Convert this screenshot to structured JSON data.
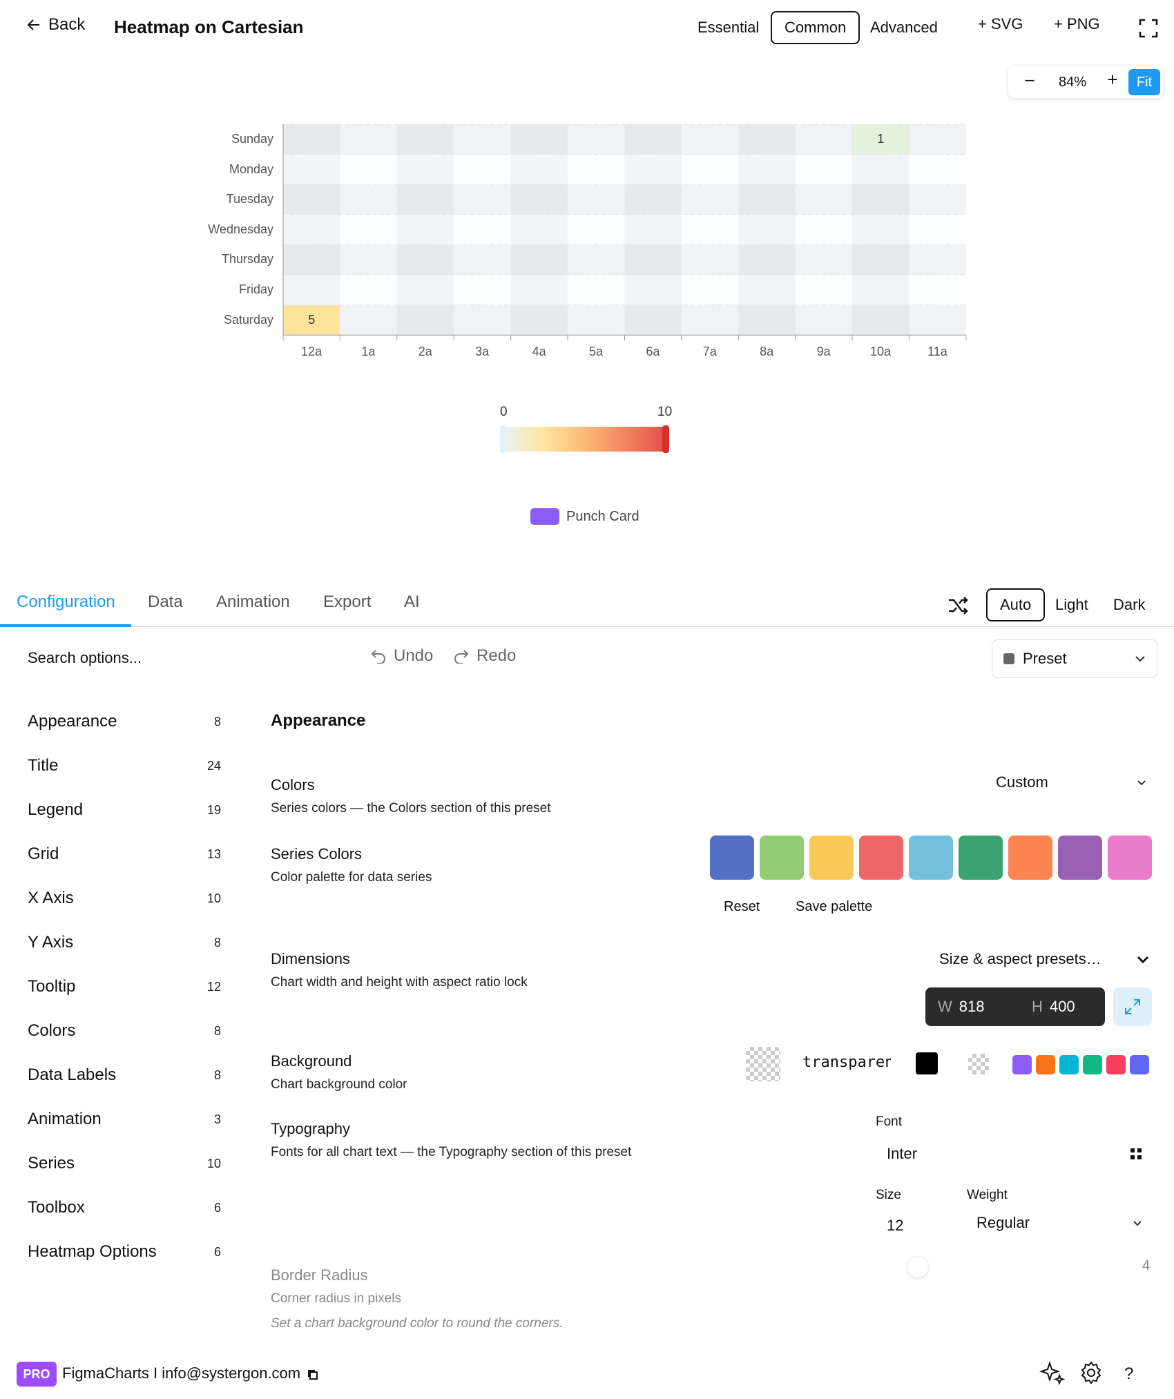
{
  "header": {
    "back_label": "Back",
    "title": "Heatmap on Cartesian",
    "modes": [
      "Essential",
      "Common",
      "Advanced"
    ],
    "active_mode": "Common",
    "export_svg": "+ SVG",
    "export_png": "+ PNG"
  },
  "zoom": {
    "out": "–",
    "level": "84%",
    "in": "+",
    "fit": "Fit"
  },
  "chart_data": {
    "type": "heatmap",
    "y_categories": [
      "Sunday",
      "Monday",
      "Tuesday",
      "Wednesday",
      "Thursday",
      "Friday",
      "Saturday"
    ],
    "x_categories": [
      "12a",
      "1a",
      "2a",
      "3a",
      "4a",
      "5a",
      "6a",
      "7a",
      "8a",
      "9a",
      "10a",
      "11a"
    ],
    "cells": [
      {
        "y": "Sunday",
        "x": "10a",
        "value": 1
      },
      {
        "y": "Saturday",
        "x": "12a",
        "value": 5
      }
    ],
    "visual_map": {
      "min": 0,
      "max": 10,
      "min_label": "0",
      "max_label": "10"
    },
    "legend": [
      "Punch Card"
    ],
    "colors": {
      "series": "#8b5cf6",
      "low": "#e0f3f8",
      "mid": "#fee090",
      "high": "#d73027"
    }
  },
  "panel": {
    "tabs": [
      "Configuration",
      "Data",
      "Animation",
      "Export",
      "AI"
    ],
    "active_tab": "Configuration",
    "themes": [
      "Auto",
      "Light",
      "Dark"
    ],
    "active_theme": "Auto",
    "search_placeholder": "Search options...",
    "undo": "Undo",
    "redo": "Redo",
    "preset": "Preset"
  },
  "sidebar": {
    "items": [
      {
        "label": "Appearance",
        "count": "8"
      },
      {
        "label": "Title",
        "count": "24"
      },
      {
        "label": "Legend",
        "count": "19"
      },
      {
        "label": "Grid",
        "count": "13"
      },
      {
        "label": "X Axis",
        "count": "10"
      },
      {
        "label": "Y Axis",
        "count": "8"
      },
      {
        "label": "Tooltip",
        "count": "12"
      },
      {
        "label": "Colors",
        "count": "8"
      },
      {
        "label": "Data Labels",
        "count": "8"
      },
      {
        "label": "Animation",
        "count": "3"
      },
      {
        "label": "Series",
        "count": "10"
      },
      {
        "label": "Toolbox",
        "count": "6"
      },
      {
        "label": "Heatmap Options",
        "count": "6"
      }
    ]
  },
  "settings": {
    "section_title": "Appearance",
    "colors": {
      "title": "Colors",
      "desc": "Series colors — the Colors section of this preset",
      "value": "Custom"
    },
    "series_colors": {
      "title": "Series Colors",
      "desc": "Color palette for data series",
      "palette": [
        "#5470c6",
        "#91cc75",
        "#fac858",
        "#ee6666",
        "#73c0de",
        "#3ba272",
        "#fc8452",
        "#9a60b4",
        "#ea7ccc"
      ],
      "reset": "Reset",
      "save": "Save palette"
    },
    "dimensions": {
      "title": "Dimensions",
      "desc": "Chart width and height with aspect ratio lock",
      "presets": "Size & aspect presets…",
      "w_prefix": "W",
      "width": "818",
      "h_prefix": "H",
      "height": "400"
    },
    "background": {
      "title": "Background",
      "desc": "Chart background color",
      "value": "transparent",
      "quick_colors": [
        "#8b5cf6",
        "#f97316",
        "#06b6d4",
        "#10b981",
        "#f43f5e",
        "#6366f1"
      ]
    },
    "typography": {
      "title": "Typography",
      "desc": "Fonts for all chart text — the Typography section of this preset",
      "font_label": "Font",
      "font_value": "Inter",
      "size_label": "Size",
      "size_value": "12",
      "weight_label": "Weight",
      "weight_value": "Regular"
    },
    "border_radius": {
      "title": "Border Radius",
      "desc": "Corner radius in pixels",
      "hint": "Set a chart background color to round the corners.",
      "value": "4"
    }
  },
  "footer": {
    "badge": "PRO",
    "text": "FigmaCharts I info@systergon.com"
  }
}
